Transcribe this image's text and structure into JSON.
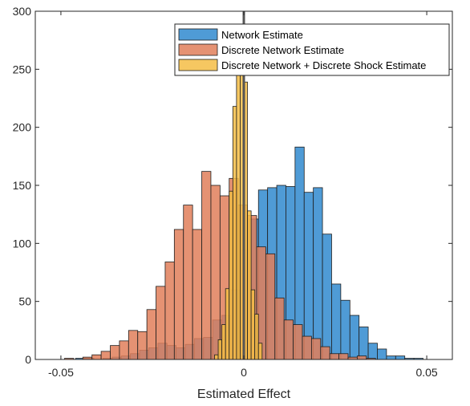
{
  "chart_data": {
    "type": "bar",
    "subtype": "overlapping-histogram",
    "title": "",
    "xlabel": "Estimated Effect",
    "ylabel": "",
    "xlim": [
      -0.057,
      0.057
    ],
    "ylim": [
      0,
      300
    ],
    "x_ticks": [
      -0.05,
      0,
      0.05
    ],
    "x_tick_labels": [
      "-0.05",
      "0",
      "0.05"
    ],
    "y_ticks": [
      0,
      50,
      100,
      150,
      200,
      250,
      300
    ],
    "y_tick_labels": [
      "0",
      "50",
      "100",
      "150",
      "200",
      "250",
      "300"
    ],
    "grid": false,
    "legend_position": "top-right",
    "vertical_reference_line_x": 0,
    "series": [
      {
        "name": "Network Estimate",
        "color": "#4f9bd6",
        "alpha": 1.0,
        "bin_start": -0.046,
        "bin_width": 0.0025,
        "counts": [
          1,
          1,
          0,
          1,
          2,
          3,
          5,
          8,
          10,
          14,
          12,
          10,
          13,
          18,
          19,
          34,
          38,
          60,
          94,
          121,
          146,
          148,
          150,
          149,
          183,
          144,
          148,
          108,
          65,
          51,
          38,
          28,
          14,
          9,
          3,
          3,
          1,
          1
        ]
      },
      {
        "name": "Discrete Network Estimate",
        "color": "#e07f5a",
        "alpha": 0.85,
        "bin_start": -0.049,
        "bin_width": 0.0025,
        "counts": [
          1,
          0,
          2,
          4,
          7,
          12,
          16,
          25,
          24,
          43,
          63,
          84,
          112,
          133,
          112,
          162,
          150,
          141,
          156,
          133,
          124,
          97,
          91,
          53,
          34,
          30,
          20,
          18,
          11,
          5,
          5,
          2,
          3,
          1
        ]
      },
      {
        "name": "Discrete Network + Discrete Shock Estimate",
        "color": "#f5bd45",
        "alpha": 0.85,
        "bin_start": -0.008,
        "bin_width": 0.001,
        "counts": [
          4,
          17,
          30,
          61,
          145,
          218,
          255,
          276,
          239,
          128,
          60,
          39,
          14
        ]
      }
    ]
  }
}
